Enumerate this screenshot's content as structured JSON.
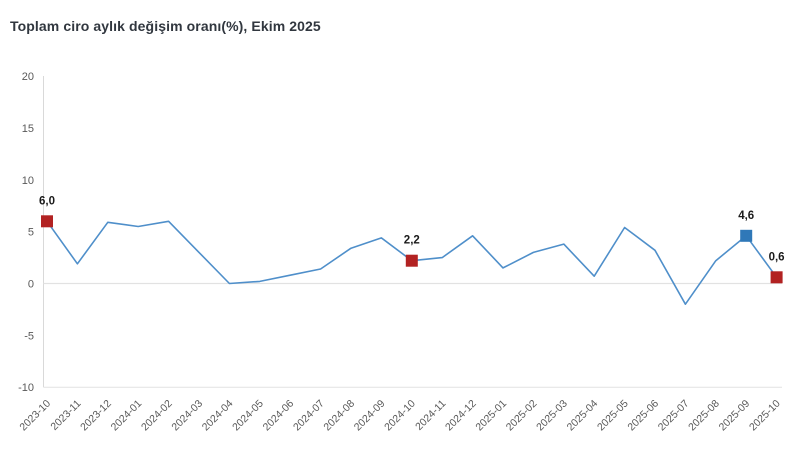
{
  "title": "Toplam ciro aylık değişim oranı(%), Ekim 2025",
  "chart_data": {
    "type": "line",
    "title": "Toplam ciro aylık değişim oranı(%), Ekim 2025",
    "x": [
      "2023-10",
      "2023-11",
      "2023-12",
      "2024-01",
      "2024-02",
      "2024-03",
      "2024-04",
      "2024-05",
      "2024-06",
      "2024-07",
      "2024-08",
      "2024-09",
      "2024-10",
      "2024-11",
      "2024-12",
      "2025-01",
      "2025-02",
      "2025-03",
      "2025-04",
      "2025-05",
      "2025-06",
      "2025-07",
      "2025-08",
      "2025-09",
      "2025-10"
    ],
    "values": [
      6.0,
      1.9,
      5.9,
      5.5,
      6.0,
      3.0,
      0.0,
      0.2,
      0.8,
      1.4,
      3.4,
      4.4,
      2.2,
      2.5,
      4.6,
      1.5,
      3.0,
      3.8,
      0.7,
      5.4,
      3.2,
      -2.0,
      2.2,
      4.6,
      0.6
    ],
    "ylim": [
      -10,
      20
    ],
    "yticks": [
      20,
      15,
      10,
      5,
      0,
      -5,
      -10
    ],
    "xlabel": "",
    "ylabel": "",
    "legend": "none",
    "grid": "zero-line-and-bottom-line-only",
    "line_color": "#4f8fca",
    "labeled_points": [
      {
        "x": "2023-10",
        "value": 6.0,
        "label": "6,0",
        "marker_color": "#b22222"
      },
      {
        "x": "2024-10",
        "value": 2.2,
        "label": "2,2",
        "marker_color": "#b22222"
      },
      {
        "x": "2025-09",
        "value": 4.6,
        "label": "4,6",
        "marker_color": "#2f78b8"
      },
      {
        "x": "2025-10",
        "value": 0.6,
        "label": "0,6",
        "marker_color": "#b22222"
      }
    ],
    "colors": {
      "axis_line": "#d9d9d9",
      "grid_line": "#e2e2e2",
      "tick_label": "#595959",
      "data_label": "#1a1a1a",
      "title": "#31373f",
      "background": "#ffffff"
    }
  }
}
